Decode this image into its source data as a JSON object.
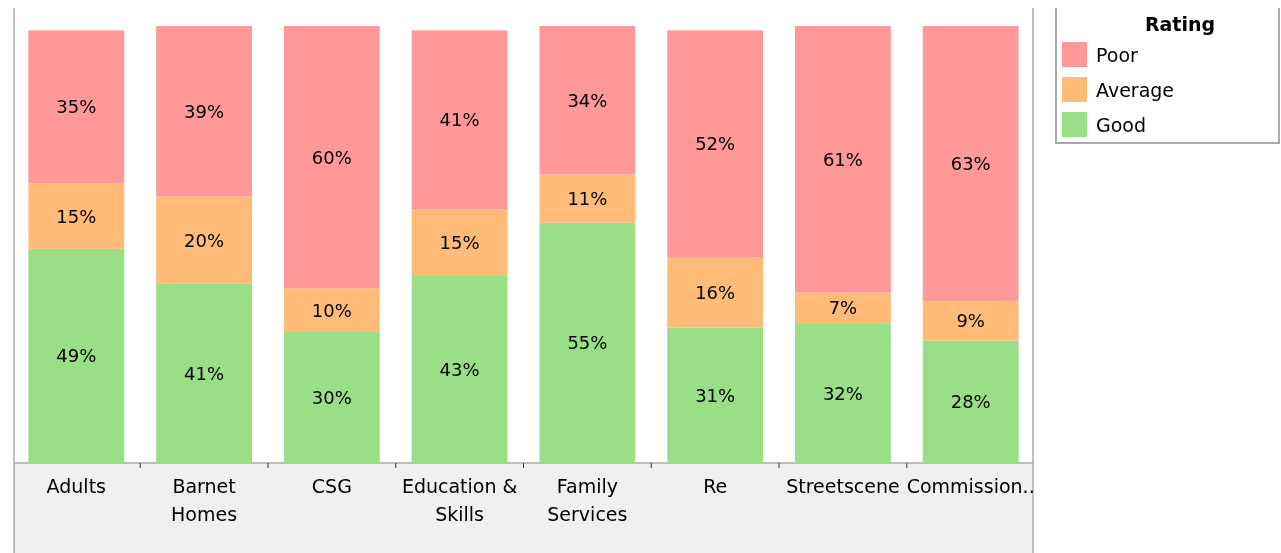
{
  "chart_data": {
    "type": "bar",
    "stacked": true,
    "legend": "top right",
    "legend_title": "Rating",
    "categories": [
      "Adults",
      "Barnet Homes",
      "CSG",
      "Education & Skills",
      "Family Services",
      "Re",
      "Streetscene",
      "Commission.."
    ],
    "series": [
      {
        "name": "Good",
        "color": "#99df88",
        "values": [
          49,
          41,
          30,
          43,
          55,
          31,
          32,
          28
        ],
        "value_labels": [
          "49%",
          "41%",
          "30%",
          "43%",
          "55%",
          "31%",
          "32%",
          "28%"
        ]
      },
      {
        "name": "Average",
        "color": "#ffbb77",
        "values": [
          15,
          20,
          10,
          15,
          11,
          16,
          7,
          9
        ],
        "value_labels": [
          "15%",
          "20%",
          "10%",
          "15%",
          "11%",
          "16%",
          "7%",
          "9%"
        ]
      },
      {
        "name": "Poor",
        "color": "#ff9999",
        "values": [
          35,
          39,
          60,
          41,
          34,
          52,
          61,
          63
        ],
        "value_labels": [
          "35%",
          "39%",
          "60%",
          "41%",
          "34%",
          "52%",
          "61%",
          "63%"
        ]
      }
    ]
  }
}
